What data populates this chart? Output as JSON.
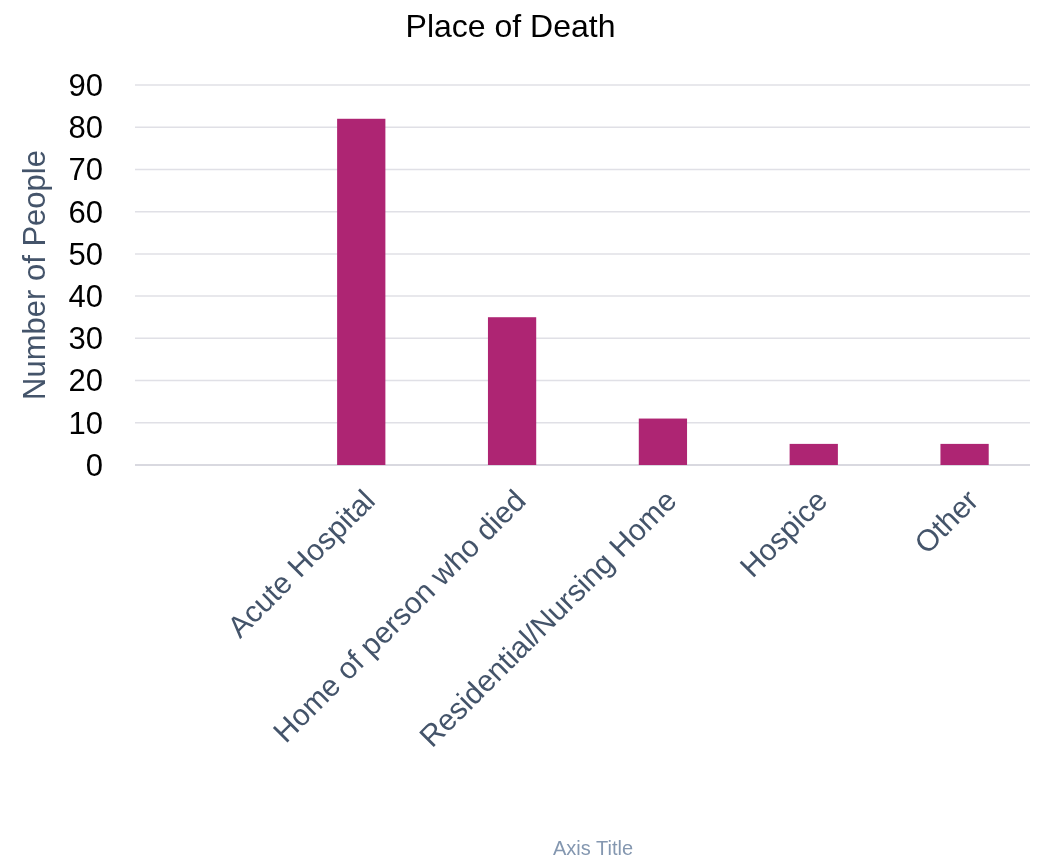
{
  "chart_data": {
    "type": "bar",
    "title": "Place of Death",
    "xlabel": "Axis Title",
    "ylabel": "Number of People",
    "categories": [
      null,
      "Acute Hospital",
      "Home of person who died",
      "Residential/Nursing Home",
      "Hospice",
      "Other"
    ],
    "values": [
      null,
      82,
      35,
      11,
      5,
      5
    ],
    "color": "#ae2573",
    "ylim": [
      0,
      90
    ],
    "yticks": [
      0,
      10,
      20,
      30,
      40,
      50,
      60,
      70,
      80,
      90
    ],
    "grid": true
  }
}
